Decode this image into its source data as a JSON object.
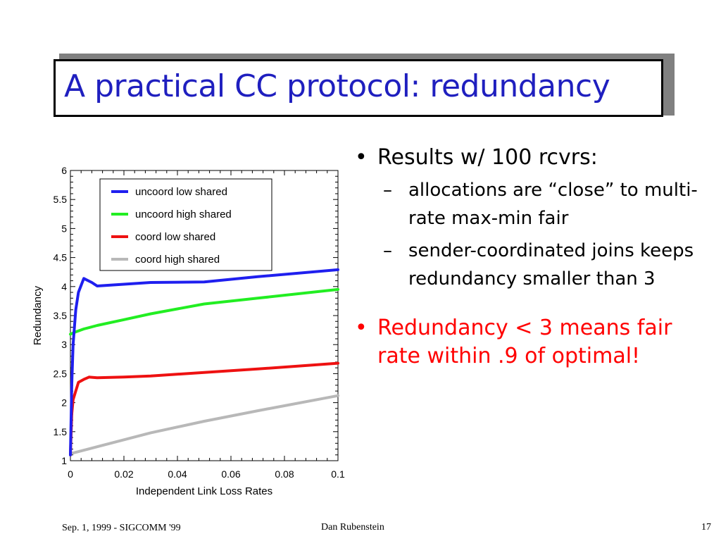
{
  "slide": {
    "title": "A practical CC protocol: redundancy",
    "footer_left": "Sep. 1, 1999 - SIGCOMM '99",
    "footer_center": "Dan Rubenstein",
    "footer_right": "17",
    "bullets": [
      {
        "text": "Results w/ 100 rcvrs:",
        "color": "#000000",
        "subs": [
          "allocations are “close” to multi-rate max-min fair",
          "sender-coordinated joins keeps redundancy smaller than 3"
        ]
      },
      {
        "text": "Redundancy < 3 means fair rate within .9 of optimal!",
        "color": "#ff0000",
        "subs": []
      }
    ]
  },
  "chart_data": {
    "type": "line",
    "xlabel": "Independent Link Loss Rates",
    "ylabel": "Redundancy",
    "xlim": [
      0,
      0.1
    ],
    "ylim": [
      1,
      6
    ],
    "xticks": [
      0,
      0.02,
      0.04,
      0.06,
      0.08,
      0.1
    ],
    "xtick_labels": [
      "0",
      "0.02",
      "0.04",
      "0.06",
      "0.08",
      "0.1"
    ],
    "yticks": [
      1,
      1.5,
      2,
      2.5,
      3,
      3.5,
      4,
      4.5,
      5,
      5.5,
      6
    ],
    "ytick_labels": [
      "1",
      "1.5",
      "2",
      "2.5",
      "3",
      "3.5",
      "4",
      "4.5",
      "5",
      "5.5",
      "6"
    ],
    "grid": false,
    "legend_position": "top-right",
    "series": [
      {
        "name": "uncoord low shared",
        "color": "#1f1fef",
        "x": [
          0,
          0.0005,
          0.001,
          0.002,
          0.003,
          0.005,
          0.008,
          0.01,
          0.02,
          0.03,
          0.05,
          0.07,
          0.1
        ],
        "y": [
          1.1,
          2.3,
          3.0,
          3.6,
          3.9,
          4.14,
          4.07,
          4.01,
          4.04,
          4.07,
          4.08,
          4.17,
          4.29
        ]
      },
      {
        "name": "uncoord high shared",
        "color": "#22ee22",
        "x": [
          0,
          0.001,
          0.002,
          0.005,
          0.01,
          0.02,
          0.03,
          0.05,
          0.07,
          0.1
        ],
        "y": [
          3.18,
          3.2,
          3.22,
          3.27,
          3.33,
          3.43,
          3.53,
          3.7,
          3.8,
          3.95
        ]
      },
      {
        "name": "coord low shared",
        "color": "#ee1111",
        "x": [
          0,
          0.0005,
          0.001,
          0.002,
          0.003,
          0.005,
          0.007,
          0.01,
          0.02,
          0.03,
          0.05,
          0.07,
          0.1
        ],
        "y": [
          1.1,
          1.8,
          2.05,
          2.2,
          2.35,
          2.4,
          2.44,
          2.43,
          2.44,
          2.46,
          2.52,
          2.58,
          2.68
        ]
      },
      {
        "name": "coord high shared",
        "color": "#b8b8b8",
        "x": [
          0,
          0.01,
          0.02,
          0.03,
          0.05,
          0.07,
          0.1
        ],
        "y": [
          1.12,
          1.24,
          1.36,
          1.48,
          1.68,
          1.86,
          2.12
        ]
      }
    ]
  }
}
